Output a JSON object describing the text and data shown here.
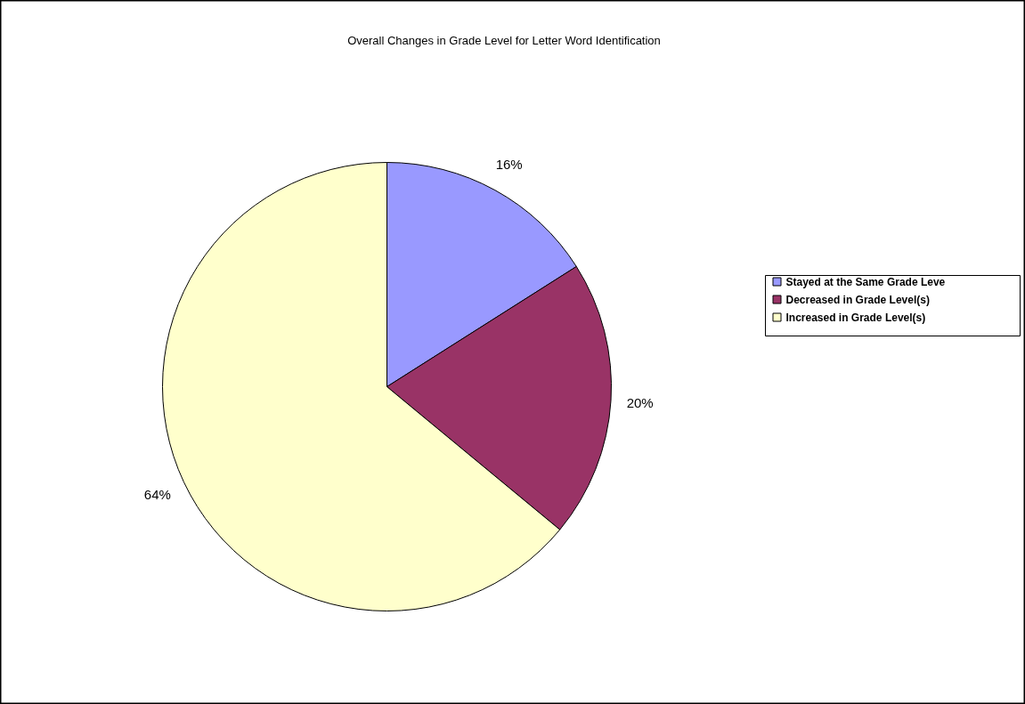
{
  "chart_data": {
    "type": "pie",
    "title": "Overall Changes in Grade Level for Letter Word Identification",
    "categories": [
      "Stayed at the Same Grade Leve",
      "Decreased in Grade Level(s)",
      "Increased in Grade Level(s)"
    ],
    "values": [
      16,
      20,
      64
    ],
    "colors": [
      "#9999ff",
      "#993366",
      "#ffffcc"
    ],
    "value_labels": [
      "16%",
      "20%",
      "64%"
    ],
    "legend": "right"
  }
}
